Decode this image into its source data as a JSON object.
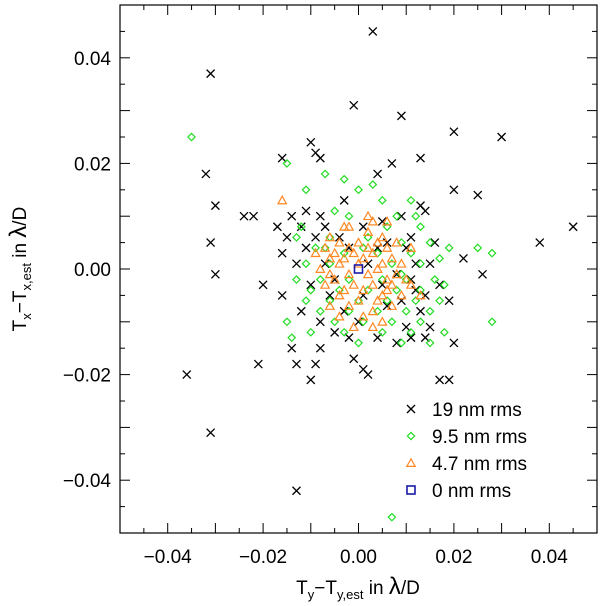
{
  "chart_data": {
    "type": "scatter",
    "xlabel": {
      "main": "T",
      "sub": "y",
      "minus": "−T",
      "sub2": "y,est",
      "tail": " in ",
      "lambda": "λ",
      "unit": "/D"
    },
    "ylabel": {
      "main": "T",
      "sub": "x",
      "minus": "−T",
      "sub2": "x,est",
      "tail": " in ",
      "lambda": "λ",
      "unit": "/D"
    },
    "xlim": [
      -0.05,
      0.05
    ],
    "ylim": [
      -0.05,
      0.05
    ],
    "xticks": [
      -0.04,
      -0.02,
      0.0,
      0.02,
      0.04
    ],
    "yticks": [
      -0.04,
      -0.02,
      0.0,
      0.02,
      0.04
    ],
    "xtick_labels": [
      "−0.04",
      "−0.02",
      "0.00",
      "0.02",
      "0.04"
    ],
    "ytick_labels": [
      "−0.04",
      "−0.02",
      "0.00",
      "0.02",
      "0.04"
    ],
    "legend_position": "bottom-right",
    "series": [
      {
        "name": "19 nm rms",
        "marker": "cross",
        "color": "#000000",
        "points": [
          [
            0.003,
            0.045
          ],
          [
            -0.031,
            0.037
          ],
          [
            -0.001,
            0.031
          ],
          [
            0.009,
            0.029
          ],
          [
            0.03,
            0.025
          ],
          [
            0.02,
            0.026
          ],
          [
            -0.01,
            0.024
          ],
          [
            -0.016,
            0.021
          ],
          [
            -0.009,
            0.022
          ],
          [
            -0.008,
            0.021
          ],
          [
            0.007,
            0.02
          ],
          [
            0.013,
            0.021
          ],
          [
            -0.032,
            0.018
          ],
          [
            0.004,
            0.018
          ],
          [
            0.02,
            0.015
          ],
          [
            0.025,
            0.014
          ],
          [
            -0.03,
            0.012
          ],
          [
            -0.024,
            0.01
          ],
          [
            -0.022,
            0.01
          ],
          [
            -0.014,
            0.01
          ],
          [
            -0.011,
            0.011
          ],
          [
            -0.008,
            0.01
          ],
          [
            0.009,
            0.01
          ],
          [
            0.013,
            0.012
          ],
          [
            0.014,
            0.011
          ],
          [
            -0.017,
            0.008
          ],
          [
            -0.012,
            0.008
          ],
          [
            -0.007,
            0.008
          ],
          [
            0.001,
            0.008
          ],
          [
            0.005,
            0.009
          ],
          [
            0.011,
            0.006
          ],
          [
            -0.031,
            0.005
          ],
          [
            -0.015,
            0.006
          ],
          [
            -0.009,
            0.006
          ],
          [
            -0.004,
            0.006
          ],
          [
            0.006,
            0.005
          ],
          [
            0.016,
            0.005
          ],
          [
            0.045,
            0.008
          ],
          [
            0.038,
            0.005
          ],
          [
            -0.016,
            0.003
          ],
          [
            -0.011,
            0.004
          ],
          [
            -0.002,
            0.004
          ],
          [
            0.004,
            0.004
          ],
          [
            0.01,
            0.004
          ],
          [
            -0.03,
            -0.001
          ],
          [
            -0.013,
            0.001
          ],
          [
            -0.007,
            0.001
          ],
          [
            0.002,
            0.001
          ],
          [
            0.008,
            -0.001
          ],
          [
            0.015,
            0.001
          ],
          [
            0.022,
            0.002
          ],
          [
            0.026,
            -0.001
          ],
          [
            -0.02,
            -0.003
          ],
          [
            -0.01,
            -0.003
          ],
          [
            -0.005,
            -0.002
          ],
          [
            0.005,
            -0.003
          ],
          [
            0.011,
            -0.002
          ],
          [
            0.017,
            -0.003
          ],
          [
            -0.016,
            -0.005
          ],
          [
            -0.006,
            -0.005
          ],
          [
            0.001,
            -0.005
          ],
          [
            0.009,
            -0.006
          ],
          [
            0.014,
            -0.005
          ],
          [
            -0.012,
            -0.008
          ],
          [
            -0.003,
            -0.008
          ],
          [
            0.006,
            -0.007
          ],
          [
            0.013,
            -0.008
          ],
          [
            0.019,
            -0.006
          ],
          [
            -0.008,
            -0.01
          ],
          [
            0.0,
            -0.01
          ],
          [
            0.01,
            -0.011
          ],
          [
            0.015,
            -0.011
          ],
          [
            -0.005,
            -0.012
          ],
          [
            0.004,
            -0.013
          ],
          [
            0.011,
            -0.013
          ],
          [
            0.02,
            -0.014
          ],
          [
            -0.014,
            -0.015
          ],
          [
            -0.008,
            -0.015
          ],
          [
            -0.002,
            -0.013
          ],
          [
            0.008,
            -0.014
          ],
          [
            0.014,
            -0.013
          ],
          [
            -0.021,
            -0.018
          ],
          [
            -0.013,
            -0.018
          ],
          [
            -0.009,
            -0.018
          ],
          [
            0.001,
            -0.019
          ],
          [
            0.002,
            -0.02
          ],
          [
            -0.01,
            -0.021
          ],
          [
            0.017,
            -0.021
          ],
          [
            0.019,
            -0.021
          ],
          [
            -0.036,
            -0.02
          ],
          [
            -0.031,
            -0.031
          ],
          [
            -0.013,
            -0.042
          ],
          [
            0.012,
            -0.004
          ],
          [
            -0.003,
            0.013
          ],
          [
            0.012,
            0.001
          ],
          [
            -0.001,
            -0.017
          ]
        ]
      },
      {
        "name": "9.5 nm rms",
        "marker": "diamond",
        "color": "#22dd22",
        "points": [
          [
            -0.035,
            0.025
          ],
          [
            -0.015,
            0.02
          ],
          [
            -0.007,
            0.018
          ],
          [
            -0.003,
            0.017
          ],
          [
            0.0,
            0.015
          ],
          [
            0.003,
            0.016
          ],
          [
            -0.011,
            0.015
          ],
          [
            0.005,
            0.013
          ],
          [
            0.011,
            0.013
          ],
          [
            -0.005,
            0.011
          ],
          [
            0.008,
            0.01
          ],
          [
            0.012,
            0.01
          ],
          [
            -0.012,
            0.008
          ],
          [
            -0.002,
            0.01
          ],
          [
            0.006,
            0.008
          ],
          [
            0.013,
            0.008
          ],
          [
            -0.013,
            0.006
          ],
          [
            -0.006,
            0.006
          ],
          [
            0.002,
            0.006
          ],
          [
            0.009,
            0.005
          ],
          [
            0.015,
            0.005
          ],
          [
            0.025,
            0.004
          ],
          [
            -0.009,
            0.004
          ],
          [
            -0.003,
            0.003
          ],
          [
            0.004,
            0.003
          ],
          [
            0.011,
            0.003
          ],
          [
            0.017,
            0.002
          ],
          [
            0.028,
            0.003
          ],
          [
            -0.011,
            0.001
          ],
          [
            -0.006,
            0.001
          ],
          [
            0.007,
            0.001
          ],
          [
            0.013,
            0.001
          ],
          [
            -0.013,
            -0.002
          ],
          [
            -0.008,
            -0.002
          ],
          [
            -0.002,
            -0.002
          ],
          [
            0.005,
            -0.002
          ],
          [
            0.01,
            -0.002
          ],
          [
            0.016,
            -0.002
          ],
          [
            -0.01,
            -0.004
          ],
          [
            -0.004,
            -0.004
          ],
          [
            0.002,
            -0.004
          ],
          [
            0.008,
            -0.004
          ],
          [
            0.013,
            -0.004
          ],
          [
            0.018,
            -0.003
          ],
          [
            -0.011,
            -0.006
          ],
          [
            -0.006,
            -0.006
          ],
          [
            0.0,
            -0.006
          ],
          [
            0.006,
            -0.006
          ],
          [
            0.012,
            -0.006
          ],
          [
            0.017,
            -0.006
          ],
          [
            -0.008,
            -0.008
          ],
          [
            -0.002,
            -0.008
          ],
          [
            0.004,
            -0.008
          ],
          [
            0.01,
            -0.008
          ],
          [
            0.015,
            -0.008
          ],
          [
            -0.015,
            -0.01
          ],
          [
            -0.005,
            -0.01
          ],
          [
            0.001,
            -0.01
          ],
          [
            0.007,
            -0.01
          ],
          [
            0.013,
            -0.01
          ],
          [
            0.028,
            -0.01
          ],
          [
            -0.01,
            -0.012
          ],
          [
            -0.003,
            -0.012
          ],
          [
            0.005,
            -0.012
          ],
          [
            0.011,
            -0.012
          ],
          [
            0.018,
            -0.012
          ],
          [
            -0.014,
            -0.013
          ],
          [
            0.0,
            -0.014
          ],
          [
            0.009,
            -0.014
          ],
          [
            0.015,
            -0.014
          ],
          [
            0.007,
            -0.047
          ],
          [
            -0.007,
            0.004
          ],
          [
            0.001,
            0.004
          ],
          [
            0.009,
            -0.001
          ],
          [
            0.019,
            0.004
          ]
        ]
      },
      {
        "name": "4.7 nm rms",
        "marker": "triangle",
        "color": "#ff8822",
        "points": [
          [
            -0.016,
            0.013
          ],
          [
            0.006,
            0.009
          ],
          [
            -0.002,
            0.008
          ],
          [
            0.003,
            0.009
          ],
          [
            -0.006,
            0.006
          ],
          [
            0.002,
            0.007
          ],
          [
            0.005,
            0.006
          ],
          [
            -0.004,
            0.005
          ],
          [
            0.0,
            0.005
          ],
          [
            0.004,
            0.005
          ],
          [
            0.008,
            0.005
          ],
          [
            -0.007,
            0.004
          ],
          [
            -0.002,
            0.004
          ],
          [
            0.002,
            0.004
          ],
          [
            0.006,
            0.004
          ],
          [
            -0.005,
            0.003
          ],
          [
            -0.001,
            0.003
          ],
          [
            0.003,
            0.003
          ],
          [
            0.007,
            0.002
          ],
          [
            -0.006,
            0.002
          ],
          [
            -0.003,
            0.002
          ],
          [
            0.001,
            0.002
          ],
          [
            0.005,
            0.001
          ],
          [
            0.009,
            0.001
          ],
          [
            -0.008,
            0.0
          ],
          [
            -0.004,
            0.001
          ],
          [
            0.0,
            0.001
          ],
          [
            0.004,
            0.0
          ],
          [
            0.008,
            -0.001
          ],
          [
            -0.006,
            -0.001
          ],
          [
            -0.002,
            -0.001
          ],
          [
            0.002,
            -0.001
          ],
          [
            0.006,
            -0.002
          ],
          [
            0.01,
            -0.002
          ],
          [
            -0.005,
            -0.002
          ],
          [
            -0.001,
            -0.003
          ],
          [
            0.003,
            -0.003
          ],
          [
            0.007,
            -0.003
          ],
          [
            -0.007,
            -0.003
          ],
          [
            -0.003,
            -0.004
          ],
          [
            0.001,
            -0.004
          ],
          [
            0.005,
            -0.005
          ],
          [
            0.009,
            -0.005
          ],
          [
            -0.004,
            -0.005
          ],
          [
            0.0,
            -0.006
          ],
          [
            0.004,
            -0.006
          ],
          [
            -0.006,
            -0.007
          ],
          [
            -0.002,
            -0.007
          ],
          [
            0.003,
            -0.008
          ],
          [
            0.007,
            -0.007
          ],
          [
            -0.004,
            -0.009
          ],
          [
            0.001,
            -0.009
          ],
          [
            0.005,
            -0.01
          ],
          [
            -0.001,
            -0.011
          ],
          [
            0.003,
            -0.011
          ],
          [
            0.011,
            -0.003
          ],
          [
            0.013,
            -0.005
          ],
          [
            -0.009,
            0.003
          ],
          [
            0.011,
            0.004
          ],
          [
            0.002,
            0.01
          ],
          [
            -0.003,
            0.008
          ],
          [
            0.006,
            -0.004
          ]
        ]
      },
      {
        "name": "0 nm rms",
        "marker": "square",
        "color": "#1a1aaa",
        "points": [
          [
            0.0,
            0.0
          ]
        ]
      }
    ]
  }
}
